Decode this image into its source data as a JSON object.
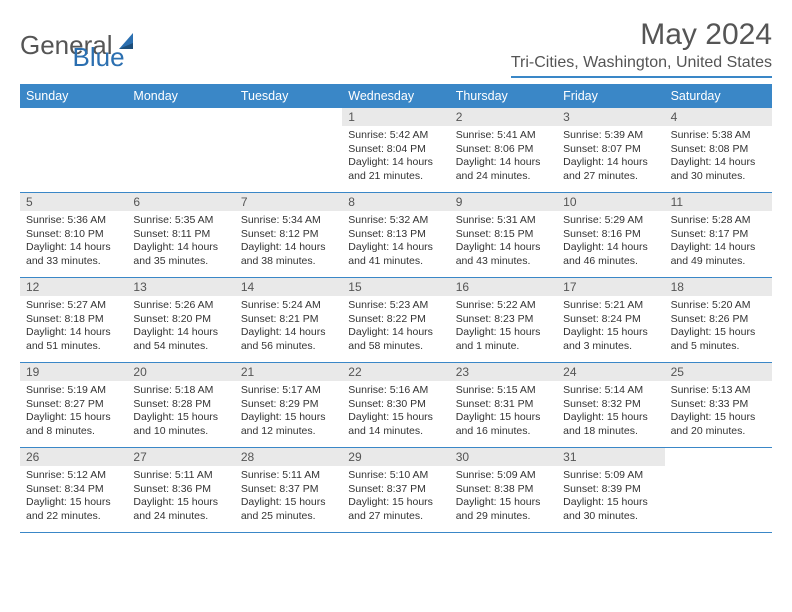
{
  "logo": {
    "text1": "General",
    "text2": "Blue"
  },
  "title": "May 2024",
  "location": "Tri-Cities, Washington, United States",
  "colors": {
    "header_bg": "#3a87c7",
    "header_text": "#ffffff",
    "daynum_bg": "#e9e9e9",
    "border": "#3a87c7",
    "body_text": "#333333",
    "title_text": "#555555"
  },
  "day_headers": [
    "Sunday",
    "Monday",
    "Tuesday",
    "Wednesday",
    "Thursday",
    "Friday",
    "Saturday"
  ],
  "weeks": [
    [
      null,
      null,
      null,
      {
        "n": "1",
        "sr": "Sunrise: 5:42 AM",
        "ss": "Sunset: 8:04 PM",
        "d1": "Daylight: 14 hours",
        "d2": "and 21 minutes."
      },
      {
        "n": "2",
        "sr": "Sunrise: 5:41 AM",
        "ss": "Sunset: 8:06 PM",
        "d1": "Daylight: 14 hours",
        "d2": "and 24 minutes."
      },
      {
        "n": "3",
        "sr": "Sunrise: 5:39 AM",
        "ss": "Sunset: 8:07 PM",
        "d1": "Daylight: 14 hours",
        "d2": "and 27 minutes."
      },
      {
        "n": "4",
        "sr": "Sunrise: 5:38 AM",
        "ss": "Sunset: 8:08 PM",
        "d1": "Daylight: 14 hours",
        "d2": "and 30 minutes."
      }
    ],
    [
      {
        "n": "5",
        "sr": "Sunrise: 5:36 AM",
        "ss": "Sunset: 8:10 PM",
        "d1": "Daylight: 14 hours",
        "d2": "and 33 minutes."
      },
      {
        "n": "6",
        "sr": "Sunrise: 5:35 AM",
        "ss": "Sunset: 8:11 PM",
        "d1": "Daylight: 14 hours",
        "d2": "and 35 minutes."
      },
      {
        "n": "7",
        "sr": "Sunrise: 5:34 AM",
        "ss": "Sunset: 8:12 PM",
        "d1": "Daylight: 14 hours",
        "d2": "and 38 minutes."
      },
      {
        "n": "8",
        "sr": "Sunrise: 5:32 AM",
        "ss": "Sunset: 8:13 PM",
        "d1": "Daylight: 14 hours",
        "d2": "and 41 minutes."
      },
      {
        "n": "9",
        "sr": "Sunrise: 5:31 AM",
        "ss": "Sunset: 8:15 PM",
        "d1": "Daylight: 14 hours",
        "d2": "and 43 minutes."
      },
      {
        "n": "10",
        "sr": "Sunrise: 5:29 AM",
        "ss": "Sunset: 8:16 PM",
        "d1": "Daylight: 14 hours",
        "d2": "and 46 minutes."
      },
      {
        "n": "11",
        "sr": "Sunrise: 5:28 AM",
        "ss": "Sunset: 8:17 PM",
        "d1": "Daylight: 14 hours",
        "d2": "and 49 minutes."
      }
    ],
    [
      {
        "n": "12",
        "sr": "Sunrise: 5:27 AM",
        "ss": "Sunset: 8:18 PM",
        "d1": "Daylight: 14 hours",
        "d2": "and 51 minutes."
      },
      {
        "n": "13",
        "sr": "Sunrise: 5:26 AM",
        "ss": "Sunset: 8:20 PM",
        "d1": "Daylight: 14 hours",
        "d2": "and 54 minutes."
      },
      {
        "n": "14",
        "sr": "Sunrise: 5:24 AM",
        "ss": "Sunset: 8:21 PM",
        "d1": "Daylight: 14 hours",
        "d2": "and 56 minutes."
      },
      {
        "n": "15",
        "sr": "Sunrise: 5:23 AM",
        "ss": "Sunset: 8:22 PM",
        "d1": "Daylight: 14 hours",
        "d2": "and 58 minutes."
      },
      {
        "n": "16",
        "sr": "Sunrise: 5:22 AM",
        "ss": "Sunset: 8:23 PM",
        "d1": "Daylight: 15 hours",
        "d2": "and 1 minute."
      },
      {
        "n": "17",
        "sr": "Sunrise: 5:21 AM",
        "ss": "Sunset: 8:24 PM",
        "d1": "Daylight: 15 hours",
        "d2": "and 3 minutes."
      },
      {
        "n": "18",
        "sr": "Sunrise: 5:20 AM",
        "ss": "Sunset: 8:26 PM",
        "d1": "Daylight: 15 hours",
        "d2": "and 5 minutes."
      }
    ],
    [
      {
        "n": "19",
        "sr": "Sunrise: 5:19 AM",
        "ss": "Sunset: 8:27 PM",
        "d1": "Daylight: 15 hours",
        "d2": "and 8 minutes."
      },
      {
        "n": "20",
        "sr": "Sunrise: 5:18 AM",
        "ss": "Sunset: 8:28 PM",
        "d1": "Daylight: 15 hours",
        "d2": "and 10 minutes."
      },
      {
        "n": "21",
        "sr": "Sunrise: 5:17 AM",
        "ss": "Sunset: 8:29 PM",
        "d1": "Daylight: 15 hours",
        "d2": "and 12 minutes."
      },
      {
        "n": "22",
        "sr": "Sunrise: 5:16 AM",
        "ss": "Sunset: 8:30 PM",
        "d1": "Daylight: 15 hours",
        "d2": "and 14 minutes."
      },
      {
        "n": "23",
        "sr": "Sunrise: 5:15 AM",
        "ss": "Sunset: 8:31 PM",
        "d1": "Daylight: 15 hours",
        "d2": "and 16 minutes."
      },
      {
        "n": "24",
        "sr": "Sunrise: 5:14 AM",
        "ss": "Sunset: 8:32 PM",
        "d1": "Daylight: 15 hours",
        "d2": "and 18 minutes."
      },
      {
        "n": "25",
        "sr": "Sunrise: 5:13 AM",
        "ss": "Sunset: 8:33 PM",
        "d1": "Daylight: 15 hours",
        "d2": "and 20 minutes."
      }
    ],
    [
      {
        "n": "26",
        "sr": "Sunrise: 5:12 AM",
        "ss": "Sunset: 8:34 PM",
        "d1": "Daylight: 15 hours",
        "d2": "and 22 minutes."
      },
      {
        "n": "27",
        "sr": "Sunrise: 5:11 AM",
        "ss": "Sunset: 8:36 PM",
        "d1": "Daylight: 15 hours",
        "d2": "and 24 minutes."
      },
      {
        "n": "28",
        "sr": "Sunrise: 5:11 AM",
        "ss": "Sunset: 8:37 PM",
        "d1": "Daylight: 15 hours",
        "d2": "and 25 minutes."
      },
      {
        "n": "29",
        "sr": "Sunrise: 5:10 AM",
        "ss": "Sunset: 8:37 PM",
        "d1": "Daylight: 15 hours",
        "d2": "and 27 minutes."
      },
      {
        "n": "30",
        "sr": "Sunrise: 5:09 AM",
        "ss": "Sunset: 8:38 PM",
        "d1": "Daylight: 15 hours",
        "d2": "and 29 minutes."
      },
      {
        "n": "31",
        "sr": "Sunrise: 5:09 AM",
        "ss": "Sunset: 8:39 PM",
        "d1": "Daylight: 15 hours",
        "d2": "and 30 minutes."
      },
      null
    ]
  ]
}
